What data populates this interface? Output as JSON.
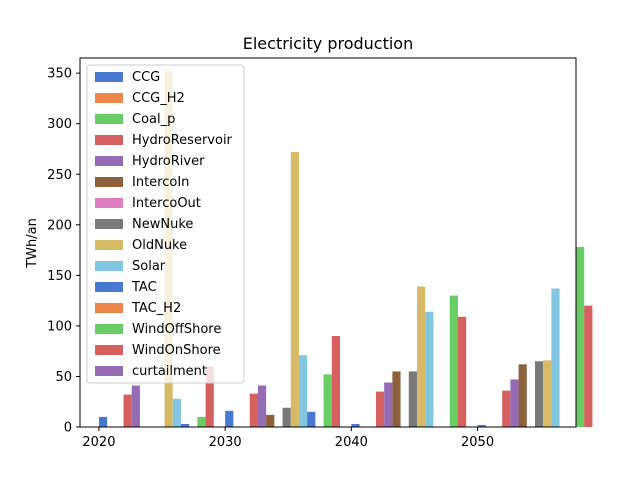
{
  "chart_data": {
    "type": "bar",
    "title": "Electricity production",
    "xlabel": "",
    "ylabel": "TWh/an",
    "categories": [
      "2020",
      "2030",
      "2040",
      "2050"
    ],
    "x": [
      2020,
      2030,
      2040,
      2050
    ],
    "xlim": [
      2018.5,
      2057.8
    ],
    "ylim": [
      0,
      365
    ],
    "x_ticks": [
      2020,
      2030,
      2040,
      2050
    ],
    "y_ticks": [
      0,
      50,
      100,
      150,
      200,
      250,
      300,
      350
    ],
    "grid": false,
    "legend_position": "upper-left",
    "series": [
      {
        "name": "CCG",
        "color": "#4878d0",
        "values": [
          10,
          16,
          3,
          2
        ]
      },
      {
        "name": "CCG_H2",
        "color": "#ee854a",
        "values": [
          0,
          0,
          0,
          0
        ]
      },
      {
        "name": "Coal_p",
        "color": "#6acc64",
        "values": [
          0,
          0,
          0,
          0
        ]
      },
      {
        "name": "HydroReservoir",
        "color": "#d65f5f",
        "values": [
          32,
          33,
          35,
          36
        ]
      },
      {
        "name": "HydroRiver",
        "color": "#956cb4",
        "values": [
          41,
          41,
          44,
          47
        ]
      },
      {
        "name": "IntercoIn",
        "color": "#8c613c",
        "values": [
          0,
          12,
          55,
          62
        ]
      },
      {
        "name": "IntercoOut",
        "color": "#dc7ec0",
        "values": [
          0,
          0,
          0,
          0
        ]
      },
      {
        "name": "NewNuke",
        "color": "#797979",
        "values": [
          0,
          19,
          55,
          65
        ]
      },
      {
        "name": "OldNuke",
        "color": "#d5bb67",
        "values": [
          352,
          272,
          139,
          66
        ]
      },
      {
        "name": "Solar",
        "color": "#82c6e2",
        "values": [
          28,
          71,
          114,
          137
        ]
      },
      {
        "name": "TAC",
        "color": "#4878d0",
        "values": [
          3,
          15,
          0,
          0
        ]
      },
      {
        "name": "TAC_H2",
        "color": "#ee854a",
        "values": [
          0,
          0,
          0,
          0
        ]
      },
      {
        "name": "WindOffShore",
        "color": "#6acc64",
        "values": [
          10,
          52,
          130,
          178
        ]
      },
      {
        "name": "WindOnShore",
        "color": "#d65f5f",
        "values": [
          60,
          90,
          109,
          120
        ]
      },
      {
        "name": "curtailment",
        "color": "#956cb4",
        "values": [
          0,
          0,
          0,
          0
        ]
      }
    ]
  }
}
